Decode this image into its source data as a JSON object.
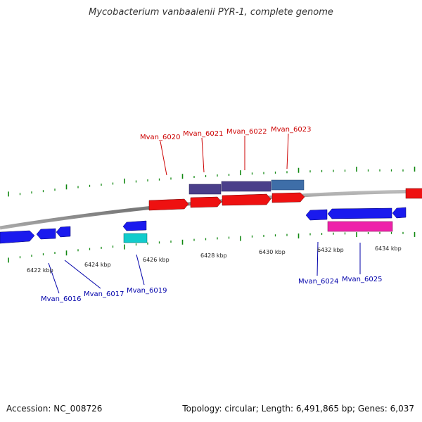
{
  "title": "Mycobacterium vanbaalenii PYR-1, complete genome",
  "footer": {
    "accession": "Accession: NC_008726",
    "topology": "Topology: circular; Length: 6,491,865 bp; Genes: 6,037"
  },
  "colors": {
    "forward_gene": "#ee1111",
    "reverse_gene": "#1a1aee",
    "forward_label": "#cc0000",
    "reverse_label": "#0000aa",
    "tick": "#118811",
    "backbone": "#888888"
  },
  "scale": {
    "start_kbp": 6421,
    "end_kbp": 6436,
    "tick_labels": [
      "6422 kbp",
      "6424 kbp",
      "6426 kbp",
      "6428 kbp",
      "6430 kbp",
      "6432 kbp",
      "6434 kbp"
    ]
  },
  "gene_labels": {
    "top": [
      "Mvan_6020",
      "Mvan_6021",
      "Mvan_6022",
      "Mvan_6023"
    ],
    "bottom": [
      "Mvan_6016",
      "Mvan_6017",
      "Mvan_6019",
      "Mvan_6024",
      "Mvan_6025"
    ]
  }
}
